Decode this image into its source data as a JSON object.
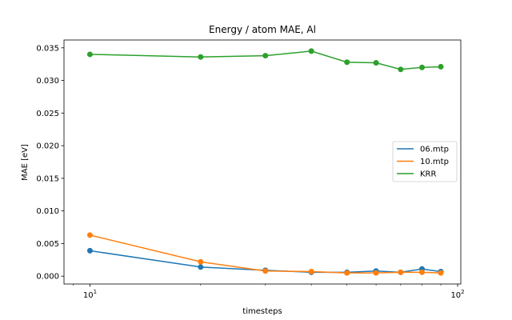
{
  "chart_data": {
    "type": "line",
    "title": "Energy / atom MAE, Al",
    "xlabel": "timesteps",
    "ylabel": "MAE [eV]",
    "x_scale": "log",
    "xlim": [
      8.5,
      102
    ],
    "ylim": [
      -0.0012,
      0.0362
    ],
    "x_ticks": [
      {
        "value": 10,
        "base": "10",
        "exp": "1"
      },
      {
        "value": 100,
        "base": "10",
        "exp": "2"
      }
    ],
    "y_ticks": [
      {
        "value": 0.0,
        "label": "0.000"
      },
      {
        "value": 0.005,
        "label": "0.005"
      },
      {
        "value": 0.01,
        "label": "0.010"
      },
      {
        "value": 0.015,
        "label": "0.015"
      },
      {
        "value": 0.02,
        "label": "0.020"
      },
      {
        "value": 0.025,
        "label": "0.025"
      },
      {
        "value": 0.03,
        "label": "0.030"
      },
      {
        "value": 0.035,
        "label": "0.035"
      }
    ],
    "legend_position": "center-right",
    "grid": false,
    "series": [
      {
        "name": "06.mtp",
        "color": "#1f77b4",
        "x": [
          10,
          20,
          30,
          40,
          50,
          60,
          70,
          80,
          90
        ],
        "y": [
          0.0039,
          0.0014,
          0.0009,
          0.0006,
          0.0006,
          0.0008,
          0.0006,
          0.0011,
          0.0007
        ]
      },
      {
        "name": "10.mtp",
        "color": "#ff7f0e",
        "x": [
          10,
          20,
          30,
          40,
          50,
          60,
          70,
          80,
          90
        ],
        "y": [
          0.0063,
          0.0022,
          0.0008,
          0.0007,
          0.0005,
          0.0005,
          0.0006,
          0.0006,
          0.0005
        ]
      },
      {
        "name": "KRR",
        "color": "#2ca02c",
        "x": [
          10,
          20,
          30,
          40,
          50,
          60,
          70,
          80,
          90
        ],
        "y": [
          0.034,
          0.0336,
          0.0338,
          0.0345,
          0.0328,
          0.0327,
          0.0317,
          0.032,
          0.0321
        ]
      }
    ]
  }
}
